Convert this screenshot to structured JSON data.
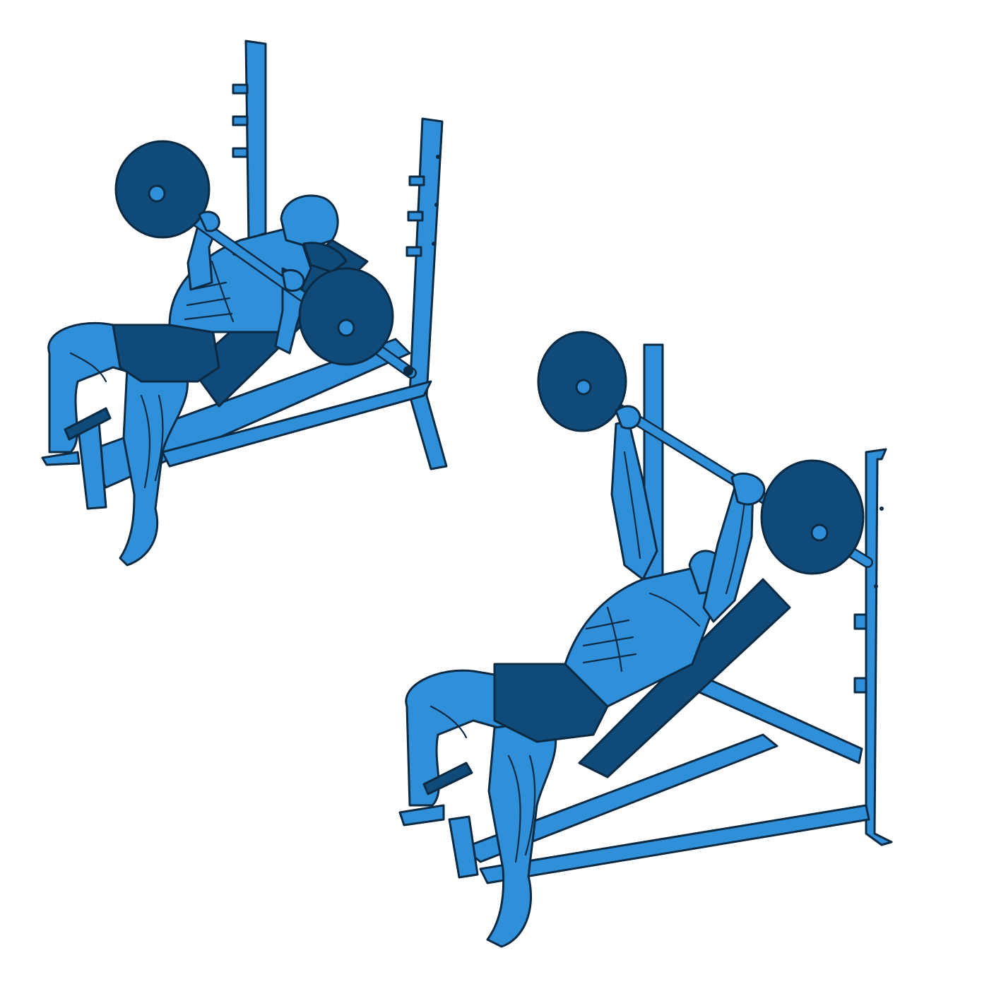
{
  "illustration": {
    "panels": [
      {
        "pose": "bar-lowered-to-chest"
      },
      {
        "pose": "arms-extended"
      }
    ],
    "colors": {
      "light": "#2f8fd8",
      "dark": "#0f4a78",
      "outline": "#0b2a44",
      "background": "#ffffff"
    }
  }
}
